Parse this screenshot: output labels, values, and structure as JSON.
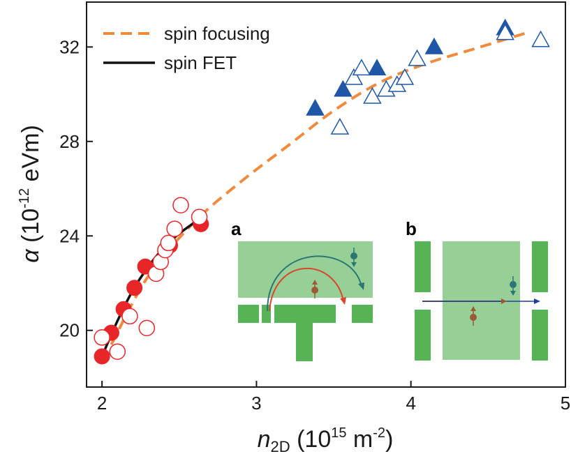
{
  "chart_data": {
    "type": "scatter",
    "xlabel": {
      "main": "n",
      "sub": "2D",
      "unit_open": " (10",
      "unit_exp": "15",
      "unit_mid": " m",
      "unit_exp2": "-2",
      "unit_close": ")"
    },
    "ylabel": {
      "main": "α",
      "unit_open": " (10",
      "unit_exp": "-12",
      "unit_close": " eVm)"
    },
    "xlim": [
      1.9,
      5.0
    ],
    "ylim": [
      17.6,
      33.9
    ],
    "xticks": [
      2,
      3,
      4,
      5
    ],
    "yticks": [
      20,
      24,
      28,
      32
    ],
    "legend": {
      "placement": "top-left",
      "items": [
        {
          "label": "spin focusing",
          "color": "#f08a3c",
          "style": "dashed"
        },
        {
          "label": "spin FET",
          "color": "#111111",
          "style": "solid"
        }
      ]
    },
    "series": [
      {
        "marker": "circle-filled",
        "color": "#e8262a",
        "points": [
          [
            2.0,
            18.9
          ],
          [
            2.06,
            19.9
          ],
          [
            2.14,
            20.9
          ],
          [
            2.21,
            21.8
          ],
          [
            2.28,
            22.7
          ],
          [
            2.44,
            23.6
          ],
          [
            2.64,
            24.5
          ]
        ]
      },
      {
        "marker": "circle-open",
        "color": "#e8262a",
        "points": [
          [
            2.0,
            19.7
          ],
          [
            2.1,
            19.1
          ],
          [
            2.18,
            20.6
          ],
          [
            2.29,
            20.1
          ],
          [
            2.35,
            22.4
          ],
          [
            2.38,
            22.9
          ],
          [
            2.41,
            23.4
          ],
          [
            2.47,
            24.3
          ],
          [
            2.51,
            25.3
          ],
          [
            2.63,
            24.8
          ],
          [
            2.43,
            23.7
          ]
        ]
      },
      {
        "marker": "triangle-filled",
        "color": "#1f57a6",
        "points": [
          [
            3.38,
            29.4
          ],
          [
            3.56,
            30.2
          ],
          [
            3.78,
            31.1
          ],
          [
            4.15,
            32.0
          ],
          [
            4.61,
            32.8
          ]
        ]
      },
      {
        "marker": "triangle-open",
        "color": "#1f57a6",
        "points": [
          [
            3.54,
            28.6
          ],
          [
            3.63,
            30.7
          ],
          [
            3.68,
            31.1
          ],
          [
            3.75,
            29.9
          ],
          [
            3.84,
            30.2
          ],
          [
            3.91,
            30.4
          ],
          [
            3.96,
            30.7
          ],
          [
            4.04,
            31.5
          ],
          [
            4.61,
            32.6
          ],
          [
            4.84,
            32.3
          ]
        ]
      },
      {
        "name": "spin focusing",
        "type": "line",
        "color": "#f08a3c",
        "style": "dashed",
        "points": [
          [
            2.06,
            19.4
          ],
          [
            2.3,
            22.3
          ],
          [
            2.6,
            24.6
          ],
          [
            2.9,
            26.3
          ],
          [
            3.2,
            27.8
          ],
          [
            3.5,
            29.3
          ],
          [
            3.8,
            30.5
          ],
          [
            4.1,
            31.3
          ],
          [
            4.4,
            31.9
          ],
          [
            4.75,
            32.6
          ]
        ]
      },
      {
        "name": "spin FET",
        "type": "line",
        "color": "#111111",
        "style": "solid",
        "points": [
          [
            2.0,
            18.9
          ],
          [
            2.1,
            20.4
          ],
          [
            2.2,
            21.7
          ],
          [
            2.3,
            22.7
          ],
          [
            2.4,
            23.5
          ],
          [
            2.5,
            24.1
          ],
          [
            2.65,
            24.8
          ]
        ]
      }
    ],
    "insets": {
      "a": {
        "label": "a",
        "plate_color": "#96d096",
        "gate_color": "#56b356",
        "electron_up_color": "#9a5b34",
        "electron_down_color": "#2a7673",
        "trajectory_colors": [
          "#d9472b",
          "#2a7673"
        ]
      },
      "b": {
        "label": "b",
        "plate_color": "#96d096",
        "gate_color": "#56b356",
        "electron_up_color": "#9a5b34",
        "electron_down_color": "#2a7673",
        "arrow_color": "#1f3f9a"
      }
    }
  }
}
